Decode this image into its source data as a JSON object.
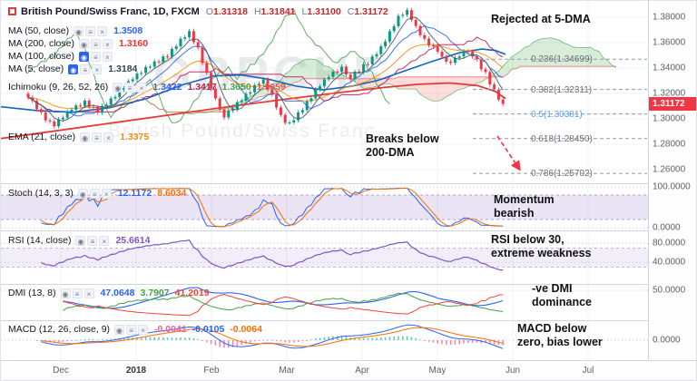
{
  "watermark": [
    "GBPCHF",
    "British Pound/Swiss Franc"
  ],
  "header": {
    "title": "British Pound/Swiss Franc, 1D, FXCM",
    "ohlc": [
      {
        "k": "O",
        "v": "1.31318"
      },
      {
        "k": "H",
        "v": "1.31841"
      },
      {
        "k": "L",
        "v": "1.31100"
      },
      {
        "k": "C",
        "v": "1.31172"
      }
    ],
    "rows": [
      {
        "label": "MA (50, close)",
        "values": [
          {
            "text": "1.3508",
            "color": "#2962ff"
          }
        ]
      },
      {
        "label": "MA (200, close)",
        "values": [
          {
            "text": "1.3160",
            "color": "#e53935"
          }
        ]
      },
      {
        "label": "MA (100, close)",
        "active_icon": true,
        "values": []
      },
      {
        "label": "MA (5, close)",
        "active_icon": true,
        "values": [
          {
            "text": "1.3184",
            "color": "#37474f"
          }
        ]
      },
      {
        "label": "Ichimoku (9, 26, 52, 26)",
        "values": [
          {
            "text": "1.3422",
            "color": "#2962ff"
          },
          {
            "text": "1.3417",
            "color": "#c2185b"
          },
          {
            "text": "1.3650",
            "color": "#43a047"
          },
          {
            "text": "1.3059",
            "color": "#ef5350"
          }
        ]
      },
      {
        "label": "EMA (21, close)",
        "values": [
          {
            "text": "1.3375",
            "color": "#fb8c00"
          }
        ]
      }
    ]
  },
  "annotations": {
    "rejected": "Rejected at 5-DMA",
    "breaks": [
      "Breaks below",
      "200-DMA"
    ]
  },
  "fib_levels": [
    {
      "label": "0.236(1.34699)",
      "price": 1.34699,
      "color": "#6a6d78"
    },
    {
      "label": "0.382(1.32311)",
      "price": 1.32311,
      "color": "#6a6d78"
    },
    {
      "label": "0.5(1.30381)",
      "price": 1.30381,
      "color": "#5b9cf6"
    },
    {
      "label": "0.618(1.28450)",
      "price": 1.2845,
      "color": "#6a6d78"
    },
    {
      "label": "0.786(1.25702)",
      "price": 1.25702,
      "color": "#6a6d78"
    }
  ],
  "price_axis": [
    {
      "text": "1.38000",
      "v": 1.38
    },
    {
      "text": "1.36000",
      "v": 1.36
    },
    {
      "text": "1.34000",
      "v": 1.34
    },
    {
      "text": "1.32000",
      "v": 1.32
    },
    {
      "text": "1.30000",
      "v": 1.3
    },
    {
      "text": "1.28000",
      "v": 1.28
    },
    {
      "text": "1.26000",
      "v": 1.26
    }
  ],
  "price_tag": {
    "text": "1.31172",
    "price": 1.31172,
    "bg": "#f23645"
  },
  "time_axis": [
    "Dec",
    "2018",
    "Feb",
    "Mar",
    "Apr",
    "May",
    "Jun",
    "Jul"
  ],
  "panes": [
    {
      "name": "stoch",
      "label": "Stoch (14, 3, 3)",
      "values": [
        {
          "text": "12.1172",
          "color": "#2962ff"
        },
        {
          "text": "8.6034",
          "color": "#ff6d00"
        }
      ],
      "axis": [
        {
          "text": "100.0000",
          "v": 100
        },
        {
          "text": "0.0000",
          "v": 0
        }
      ],
      "annotation": [
        "Momentum",
        "bearish"
      ]
    },
    {
      "name": "rsi",
      "label": "RSI (14, close)",
      "values": [
        {
          "text": "25.6614",
          "color": "#7e57c2"
        }
      ],
      "axis": [
        {
          "text": "80.0000",
          "v": 80
        },
        {
          "text": "40.0000",
          "v": 40
        }
      ],
      "annotation": [
        "RSI below 30,",
        "extreme weakness"
      ]
    },
    {
      "name": "dmi",
      "label": "DMI (13, 8)",
      "values": [
        {
          "text": "47.0648",
          "color": "#2962ff"
        },
        {
          "text": "3.7907",
          "color": "#43a047"
        },
        {
          "text": "41.2019",
          "color": "#f44336"
        }
      ],
      "axis": [
        {
          "text": "50.0000",
          "v": 50
        }
      ],
      "annotation": [
        "-ve DMI",
        "dominance"
      ]
    },
    {
      "name": "macd",
      "label": "MACD (12, 26, close, 9)",
      "values": [
        {
          "text": "-0.0041",
          "color": "#f06292"
        },
        {
          "text": "-0.0105",
          "color": "#2962ff"
        },
        {
          "text": "-0.0064",
          "color": "#ff6d00"
        }
      ],
      "axis": [
        {
          "text": "0.0000",
          "v": 0
        }
      ],
      "annotation": [
        "MACD below",
        "zero, bias lower"
      ]
    }
  ],
  "chart_data": {
    "type": "candlestick",
    "symbol": "GBPCHF",
    "timeframe": "1D",
    "title": "British Pound/Swiss Franc, 1D, FXCM",
    "categories": [
      "Dec",
      "2018",
      "Feb",
      "Mar",
      "Apr",
      "May",
      "Jun",
      "Jul"
    ],
    "ylim": [
      1.26,
      1.388
    ],
    "last_candle": {
      "o": 1.31318,
      "h": 1.31841,
      "l": 1.311,
      "c": 1.31172
    },
    "closes": [
      1.3168,
      1.3141,
      1.3076,
      1.3051,
      1.2988,
      1.2979,
      1.2941,
      1.2996,
      1.3009,
      1.3058,
      1.3072,
      1.3106,
      1.3101,
      1.3143,
      1.3095,
      1.3092,
      1.3048,
      1.3101,
      1.3112,
      1.3161,
      1.3172,
      1.3228,
      1.3241,
      1.3296,
      1.3311,
      1.3356,
      1.3361,
      1.3407,
      1.3411,
      1.3452,
      1.345,
      1.3492,
      1.3491,
      1.3551,
      1.3571,
      1.3631,
      1.3642,
      1.3691,
      1.3604,
      1.3561,
      1.3439,
      1.3362,
      1.3238,
      1.3161,
      1.3074,
      1.3011,
      1.3064,
      1.3076,
      1.3131,
      1.3142,
      1.3198,
      1.3209,
      1.3264,
      1.3276,
      1.3311,
      1.3229,
      1.3191,
      1.3089,
      1.3031,
      1.2969,
      1.2971,
      1.2989,
      1.3051,
      1.3069,
      1.3138,
      1.3162,
      1.3231,
      1.3256,
      1.3311,
      1.3329,
      1.3371,
      1.3369,
      1.3411,
      1.3349,
      1.3311,
      1.3371,
      1.3369,
      1.3431,
      1.3429,
      1.3491,
      1.3509,
      1.3571,
      1.3609,
      1.3691,
      1.3729,
      1.3811,
      1.3819,
      1.3856,
      1.3779,
      1.3731,
      1.3659,
      1.3631,
      1.3579,
      1.3571,
      1.3529,
      1.3489,
      1.3451,
      1.3441,
      1.3479,
      1.3491,
      1.3531,
      1.3529,
      1.3491,
      1.3469,
      1.3391,
      1.3369,
      1.3271,
      1.3229,
      1.3151,
      1.3117
    ],
    "ma50_path": [
      [
        0,
        1.3095
      ],
      [
        40,
        1.3065
      ],
      [
        80,
        1.3052
      ],
      [
        120,
        1.3088
      ],
      [
        160,
        1.3158
      ],
      [
        200,
        1.3268
      ],
      [
        235,
        1.3338
      ],
      [
        265,
        1.3345
      ],
      [
        295,
        1.3312
      ],
      [
        325,
        1.3258
      ],
      [
        355,
        1.3228
      ],
      [
        385,
        1.3255
      ],
      [
        415,
        1.3302
      ],
      [
        445,
        1.3378
      ],
      [
        475,
        1.3452
      ],
      [
        505,
        1.352
      ],
      [
        530,
        1.3549
      ],
      [
        545,
        1.3538
      ],
      [
        556,
        1.3508
      ]
    ],
    "ma200_path": [
      [
        0,
        1.2845
      ],
      [
        60,
        1.2905
      ],
      [
        120,
        1.2965
      ],
      [
        180,
        1.3025
      ],
      [
        240,
        1.3085
      ],
      [
        300,
        1.3142
      ],
      [
        360,
        1.3196
      ],
      [
        420,
        1.3246
      ],
      [
        460,
        1.3272
      ],
      [
        495,
        1.3282
      ],
      [
        525,
        1.3262
      ],
      [
        545,
        1.3215
      ],
      [
        556,
        1.316
      ]
    ],
    "indicators_derived_from_closes": [
      "MA5",
      "EMA21",
      "Ichimoku(9,26,52,26)",
      "Stoch(14,3,3)",
      "RSI(14)",
      "DMI(13,8)",
      "MACD(12,26,9)"
    ],
    "colors": {
      "up": "#089981",
      "down": "#f23645",
      "cloud_green": "rgba(76,175,80,0.22)",
      "cloud_red": "rgba(239,83,80,0.20)"
    }
  }
}
